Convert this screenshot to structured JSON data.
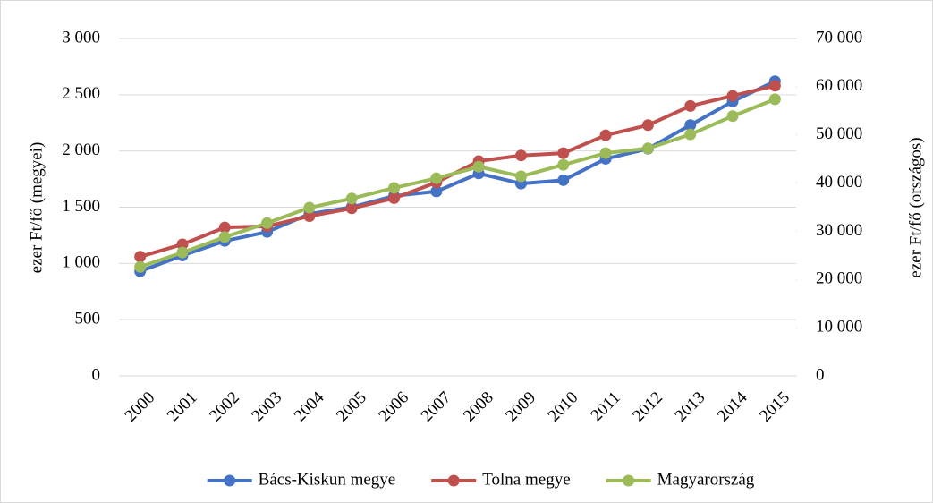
{
  "chart_data": {
    "type": "line",
    "y_label": "ezer Ft/fő (megyei)",
    "y2_label": "ezer Ft/fő (országos)",
    "categories": [
      "2000",
      "2001",
      "2002",
      "2003",
      "2004",
      "2005",
      "2006",
      "2007",
      "2008",
      "2009",
      "2010",
      "2011",
      "2012",
      "2013",
      "2014",
      "2015"
    ],
    "series": [
      {
        "name": "Bács-Kiskun megye",
        "color": "#4472c4",
        "values": [
          930,
          1070,
          1200,
          1280,
          1440,
          1500,
          1600,
          1640,
          1800,
          1710,
          1740,
          1930,
          2020,
          2230,
          2440,
          2620
        ]
      },
      {
        "name": "Tolna megye",
        "color": "#c0504d",
        "values": [
          1060,
          1170,
          1320,
          1330,
          1420,
          1490,
          1580,
          1720,
          1910,
          1960,
          1980,
          2140,
          2230,
          2400,
          2490,
          2580
        ]
      },
      {
        "name": "Magyarország",
        "color": "#9bbb59",
        "axis": "y2",
        "values": [
          22600,
          25600,
          28800,
          31700,
          34900,
          36800,
          39000,
          41000,
          43400,
          41400,
          43800,
          46200,
          47200,
          50100,
          53900,
          57400
        ]
      }
    ],
    "ylim": [
      0,
      3000
    ],
    "yticks": [
      0,
      500,
      {
        "value": 1000,
        "label": "1 000"
      },
      {
        "value": 1500,
        "label": "1 500"
      },
      {
        "value": 2000,
        "label": "2 000"
      },
      {
        "value": 2500,
        "label": "2 500"
      },
      {
        "value": 3000,
        "label": "3 000"
      }
    ],
    "y2lim": [
      0,
      70000
    ],
    "y2ticks": [
      0,
      {
        "value": 10000,
        "label": "10 000"
      },
      {
        "value": 20000,
        "label": "20 000"
      },
      {
        "value": 30000,
        "label": "30 000"
      },
      {
        "value": 40000,
        "label": "40 000"
      },
      {
        "value": 50000,
        "label": "50 000"
      },
      {
        "value": 60000,
        "label": "60 000"
      },
      {
        "value": 70000,
        "label": "70 000"
      }
    ],
    "grid": true,
    "legend": "bottom"
  }
}
